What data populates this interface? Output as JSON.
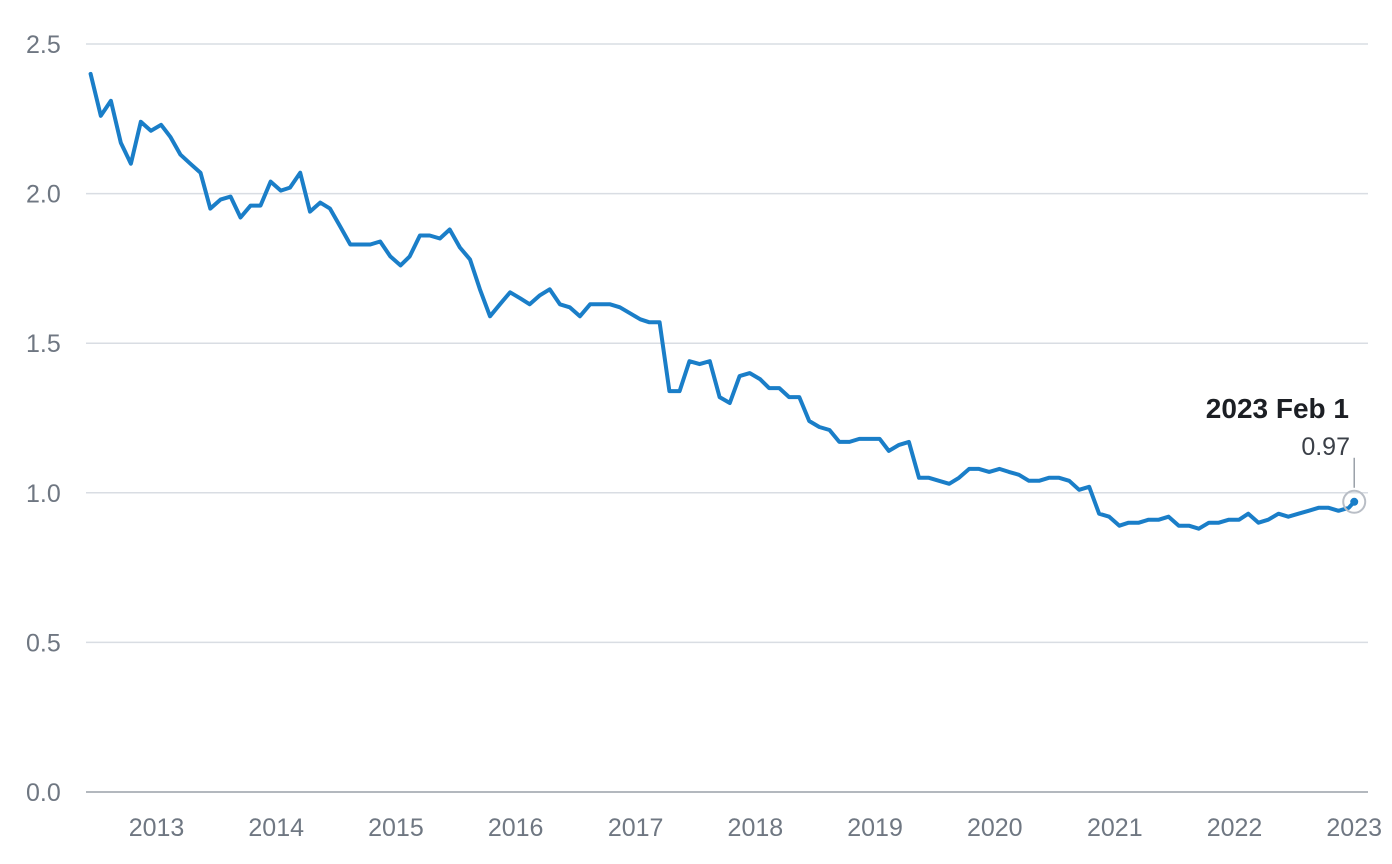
{
  "chart_data": {
    "type": "line",
    "title": "",
    "xlabel": "",
    "ylabel": "",
    "ylim": [
      0,
      2.5
    ],
    "xlim": [
      "2012-07-01",
      "2023-03-15"
    ],
    "y_ticks": [
      "0.0",
      "0.5",
      "1.0",
      "1.5",
      "2.0",
      "2.5"
    ],
    "x_ticks": [
      {
        "label": "2013",
        "date": "2013-02-01"
      },
      {
        "label": "2014",
        "date": "2014-02-01"
      },
      {
        "label": "2015",
        "date": "2015-02-01"
      },
      {
        "label": "2016",
        "date": "2016-02-01"
      },
      {
        "label": "2017",
        "date": "2017-02-01"
      },
      {
        "label": "2018",
        "date": "2018-02-01"
      },
      {
        "label": "2019",
        "date": "2019-02-01"
      },
      {
        "label": "2020",
        "date": "2020-02-01"
      },
      {
        "label": "2021",
        "date": "2021-02-01"
      },
      {
        "label": "2022",
        "date": "2022-02-01"
      },
      {
        "label": "2023",
        "date": "2023-02-01"
      }
    ],
    "grid": true,
    "legend": "none",
    "colors": {
      "series": "#1a7ec8",
      "grid": "#d9dde3",
      "axis": "#9aa0a8"
    },
    "series": [
      {
        "x": [
          "2012-07-15",
          "2012-08-15",
          "2012-09-15",
          "2012-10-15",
          "2012-11-15",
          "2012-12-15",
          "2013-01-15",
          "2013-02-15",
          "2013-03-15",
          "2013-04-15",
          "2013-05-15",
          "2013-06-15",
          "2013-07-15",
          "2013-08-15",
          "2013-09-15",
          "2013-10-15",
          "2013-11-15",
          "2013-12-15",
          "2014-01-15",
          "2014-02-15",
          "2014-03-15",
          "2014-04-15",
          "2014-05-15",
          "2014-06-15",
          "2014-07-15",
          "2014-08-15",
          "2014-09-15",
          "2014-10-15",
          "2014-11-15",
          "2014-12-15",
          "2015-01-15",
          "2015-02-15",
          "2015-03-15",
          "2015-04-15",
          "2015-05-15",
          "2015-06-15",
          "2015-07-15",
          "2015-08-15",
          "2015-09-15",
          "2015-10-15",
          "2015-11-15",
          "2015-12-15",
          "2016-01-15",
          "2016-02-15",
          "2016-03-15",
          "2016-04-15",
          "2016-05-15",
          "2016-06-15",
          "2016-07-15",
          "2016-08-15",
          "2016-09-15",
          "2016-10-15",
          "2016-11-15",
          "2016-12-15",
          "2017-01-15",
          "2017-02-15",
          "2017-03-15",
          "2017-04-15",
          "2017-05-15",
          "2017-06-15",
          "2017-07-15",
          "2017-08-15",
          "2017-09-15",
          "2017-10-15",
          "2017-11-15",
          "2017-12-15",
          "2018-01-15",
          "2018-02-15",
          "2018-03-15",
          "2018-04-15",
          "2018-05-15",
          "2018-06-15",
          "2018-07-15",
          "2018-08-15",
          "2018-09-15",
          "2018-10-15",
          "2018-11-15",
          "2018-12-15",
          "2019-01-15",
          "2019-02-15",
          "2019-03-15",
          "2019-04-15",
          "2019-05-15",
          "2019-06-15",
          "2019-07-15",
          "2019-08-15",
          "2019-09-15",
          "2019-10-15",
          "2019-11-15",
          "2019-12-15",
          "2020-01-15",
          "2020-02-15",
          "2020-03-15",
          "2020-04-15",
          "2020-05-15",
          "2020-06-15",
          "2020-07-15",
          "2020-08-15",
          "2020-09-15",
          "2020-10-15",
          "2020-11-15",
          "2020-12-15",
          "2021-01-15",
          "2021-02-15",
          "2021-03-15",
          "2021-04-15",
          "2021-05-15",
          "2021-06-15",
          "2021-07-15",
          "2021-08-15",
          "2021-09-15",
          "2021-10-15",
          "2021-11-15",
          "2021-12-15",
          "2022-01-15",
          "2022-02-15",
          "2022-03-15",
          "2022-04-15",
          "2022-05-15",
          "2022-06-15",
          "2022-07-15",
          "2022-08-15",
          "2022-09-15",
          "2022-10-15",
          "2022-11-15",
          "2022-12-15",
          "2023-01-15",
          "2023-02-01"
        ],
        "y": [
          2.4,
          2.26,
          2.31,
          2.17,
          2.1,
          2.24,
          2.21,
          2.23,
          2.19,
          2.13,
          2.1,
          2.07,
          1.95,
          1.98,
          1.99,
          1.92,
          1.96,
          1.96,
          2.04,
          2.01,
          2.02,
          2.07,
          1.94,
          1.97,
          1.95,
          1.89,
          1.83,
          1.83,
          1.83,
          1.84,
          1.79,
          1.76,
          1.79,
          1.86,
          1.86,
          1.85,
          1.88,
          1.82,
          1.78,
          1.68,
          1.59,
          1.63,
          1.67,
          1.65,
          1.63,
          1.66,
          1.68,
          1.63,
          1.62,
          1.59,
          1.63,
          1.63,
          1.63,
          1.62,
          1.6,
          1.58,
          1.57,
          1.57,
          1.34,
          1.34,
          1.44,
          1.43,
          1.44,
          1.32,
          1.3,
          1.39,
          1.4,
          1.38,
          1.35,
          1.35,
          1.32,
          1.32,
          1.24,
          1.22,
          1.21,
          1.17,
          1.17,
          1.18,
          1.18,
          1.18,
          1.14,
          1.16,
          1.17,
          1.05,
          1.05,
          1.04,
          1.03,
          1.05,
          1.08,
          1.08,
          1.07,
          1.08,
          1.07,
          1.06,
          1.04,
          1.04,
          1.05,
          1.05,
          1.04,
          1.01,
          1.02,
          0.93,
          0.92,
          0.89,
          0.9,
          0.9,
          0.91,
          0.91,
          0.92,
          0.89,
          0.89,
          0.88,
          0.9,
          0.9,
          0.91,
          0.91,
          0.93,
          0.9,
          0.91,
          0.93,
          0.92,
          0.93,
          0.94,
          0.95,
          0.95,
          0.94,
          0.95,
          0.97
        ]
      }
    ],
    "annotations": [
      {
        "date": "2023-02-01",
        "title": "2023 Feb 1",
        "value": 0.97,
        "value_label": "0.97"
      }
    ]
  }
}
